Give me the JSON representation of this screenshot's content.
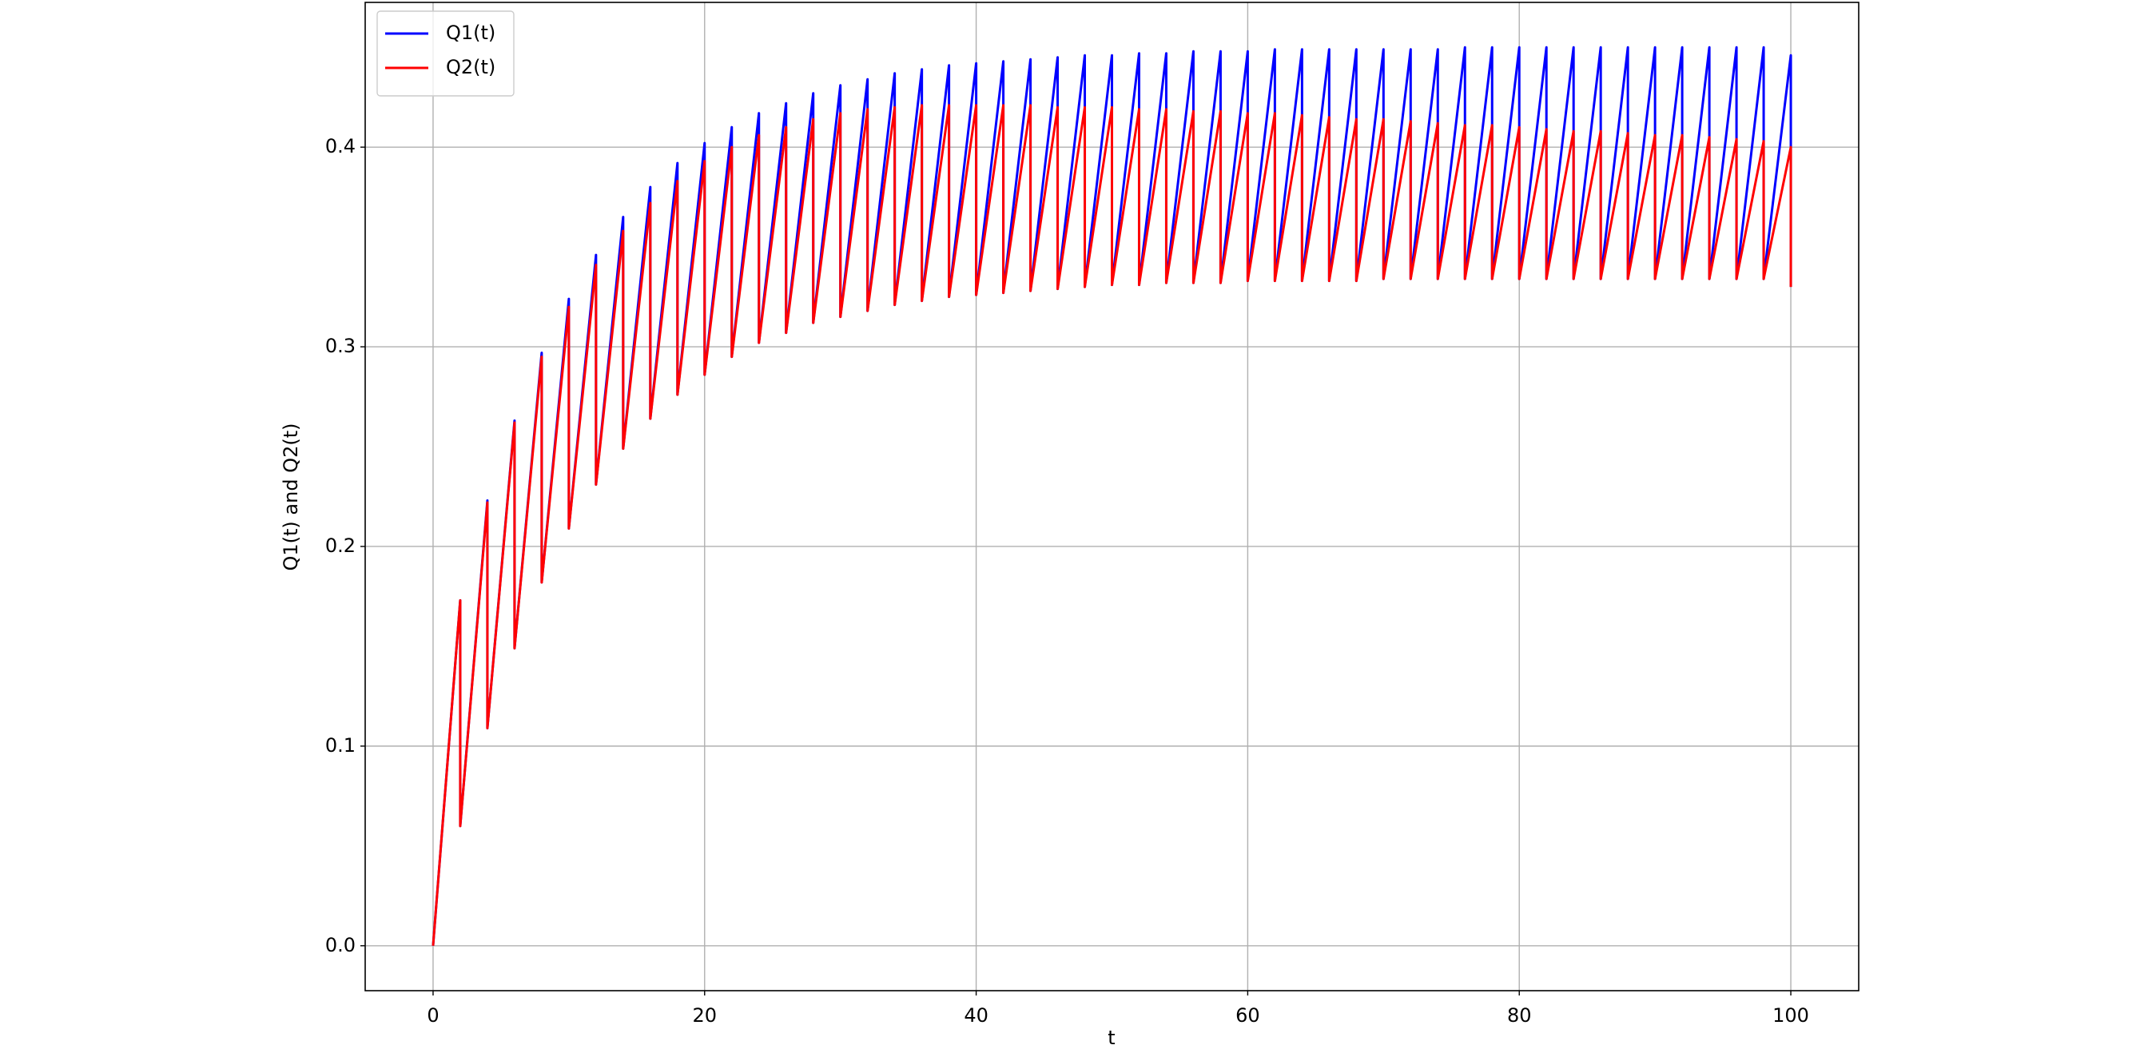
{
  "chart_data": {
    "type": "line",
    "xlabel": "t",
    "ylabel": "Q1(t) and Q2(t)",
    "x": [
      0,
      2,
      2,
      4,
      4,
      6,
      6,
      8,
      8,
      10,
      10,
      12,
      12,
      14,
      14,
      16,
      16,
      18,
      18,
      20,
      20,
      22,
      22,
      24,
      24,
      26,
      26,
      28,
      28,
      30,
      30,
      32,
      32,
      34,
      34,
      36,
      36,
      38,
      38,
      40,
      40,
      42,
      42,
      44,
      44,
      46,
      46,
      48,
      48,
      50,
      50,
      52,
      52,
      54,
      54,
      56,
      56,
      58,
      58,
      60,
      60,
      62,
      62,
      64,
      64,
      66,
      66,
      68,
      68,
      70,
      70,
      72,
      72,
      74,
      74,
      76,
      76,
      78,
      78,
      80,
      80,
      82,
      82,
      84,
      84,
      86,
      86,
      88,
      88,
      90,
      90,
      92,
      92,
      94,
      94,
      96,
      96,
      98,
      98,
      100,
      100
    ],
    "series": [
      {
        "name": "Q1(t)",
        "color": "#0000ff",
        "values": [
          0,
          0.173,
          0.06,
          0.223,
          0.109,
          0.263,
          0.149,
          0.297,
          0.182,
          0.324,
          0.209,
          0.346,
          0.231,
          0.365,
          0.249,
          0.38,
          0.264,
          0.392,
          0.276,
          0.402,
          0.286,
          0.41,
          0.295,
          0.417,
          0.302,
          0.422,
          0.307,
          0.427,
          0.312,
          0.431,
          0.315,
          0.434,
          0.318,
          0.437,
          0.321,
          0.439,
          0.323,
          0.441,
          0.325,
          0.442,
          0.326,
          0.443,
          0.327,
          0.444,
          0.328,
          0.445,
          0.329,
          0.446,
          0.33,
          0.446,
          0.331,
          0.447,
          0.331,
          0.447,
          0.332,
          0.448,
          0.332,
          0.448,
          0.332,
          0.448,
          0.333,
          0.449,
          0.333,
          0.449,
          0.333,
          0.449,
          0.333,
          0.449,
          0.333,
          0.449,
          0.334,
          0.449,
          0.334,
          0.449,
          0.334,
          0.45,
          0.334,
          0.45,
          0.334,
          0.45,
          0.334,
          0.45,
          0.334,
          0.45,
          0.334,
          0.45,
          0.334,
          0.45,
          0.334,
          0.45,
          0.334,
          0.45,
          0.334,
          0.45,
          0.334,
          0.45,
          0.334,
          0.45,
          0.334,
          0.446,
          0.33
        ]
      },
      {
        "name": "Q2(t)",
        "color": "#ff0000",
        "values": [
          0,
          0.173,
          0.06,
          0.222,
          0.109,
          0.262,
          0.149,
          0.295,
          0.182,
          0.32,
          0.209,
          0.341,
          0.231,
          0.358,
          0.249,
          0.372,
          0.264,
          0.383,
          0.276,
          0.393,
          0.286,
          0.4,
          0.295,
          0.406,
          0.302,
          0.41,
          0.307,
          0.414,
          0.312,
          0.417,
          0.315,
          0.419,
          0.318,
          0.42,
          0.321,
          0.421,
          0.323,
          0.421,
          0.325,
          0.421,
          0.326,
          0.421,
          0.327,
          0.421,
          0.328,
          0.42,
          0.329,
          0.42,
          0.33,
          0.42,
          0.331,
          0.419,
          0.331,
          0.419,
          0.332,
          0.418,
          0.332,
          0.418,
          0.332,
          0.417,
          0.333,
          0.417,
          0.333,
          0.416,
          0.333,
          0.415,
          0.333,
          0.414,
          0.333,
          0.414,
          0.334,
          0.413,
          0.334,
          0.412,
          0.334,
          0.411,
          0.334,
          0.411,
          0.334,
          0.41,
          0.334,
          0.409,
          0.334,
          0.408,
          0.334,
          0.408,
          0.334,
          0.407,
          0.334,
          0.406,
          0.334,
          0.406,
          0.334,
          0.405,
          0.334,
          0.404,
          0.334,
          0.403,
          0.334,
          0.4,
          0.33
        ]
      }
    ],
    "xlim": [
      -5,
      105
    ],
    "xticks": [
      0,
      20,
      40,
      60,
      80,
      100
    ],
    "ylim": [
      -0.0225,
      0.4725
    ],
    "yticks": [
      {
        "value": 0,
        "label": "0.0"
      },
      0.1,
      0.2,
      0.3,
      0.4
    ],
    "grid": true,
    "legend": "upper left"
  }
}
